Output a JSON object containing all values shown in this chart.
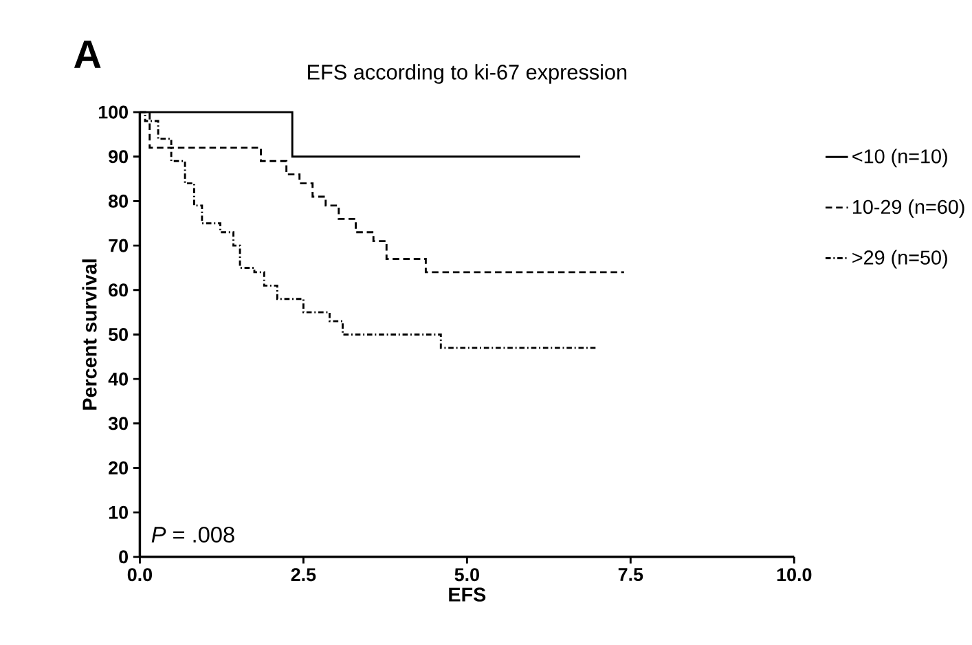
{
  "chart_data": {
    "type": "step",
    "title": "EFS according to ki-67 expression",
    "xlabel": "EFS",
    "ylabel": "Percent survival",
    "xlim": [
      0,
      10
    ],
    "ylim": [
      0,
      100
    ],
    "xticks": [
      {
        "value": 0,
        "label": "0.0"
      },
      {
        "value": 2.5,
        "label": "2.5"
      },
      {
        "value": 5,
        "label": "5.0"
      },
      {
        "value": 7.5,
        "label": "7.5"
      },
      {
        "value": 10,
        "label": "10.0"
      }
    ],
    "yticks": [
      0,
      10,
      20,
      30,
      40,
      50,
      60,
      70,
      80,
      90,
      100
    ],
    "legend": "right",
    "annotations": [
      "A",
      "*P* = .008"
    ],
    "series": [
      {
        "name": "<10 (n=10)",
        "color": "#000000",
        "line_style": "solid",
        "x": [
          0,
          2.33,
          6.73
        ],
        "values": [
          100,
          90,
          90
        ]
      },
      {
        "name": "10-29 (n=60)",
        "color": "#000000",
        "line_style": "dashed",
        "x": [
          0,
          0.15,
          1.85,
          2.24,
          2.44,
          2.64,
          2.84,
          3.04,
          3.3,
          3.57,
          3.77,
          4.37,
          7.4
        ],
        "values": [
          100,
          92,
          89,
          86,
          84,
          81,
          79,
          76,
          73,
          71,
          67,
          64,
          64
        ]
      },
      {
        "name": ">29 (n=50)",
        "color": "#000000",
        "line_style": "dotted",
        "x": [
          0,
          0.08,
          0.28,
          0.48,
          0.69,
          0.83,
          0.95,
          1.23,
          1.43,
          1.53,
          1.75,
          1.9,
          2.1,
          2.5,
          2.9,
          3.1,
          4.6,
          7.0
        ],
        "values": [
          100,
          98,
          94,
          89,
          84,
          79,
          75,
          73,
          70,
          65,
          64,
          61,
          58,
          55,
          53,
          50,
          47,
          47
        ]
      }
    ]
  }
}
